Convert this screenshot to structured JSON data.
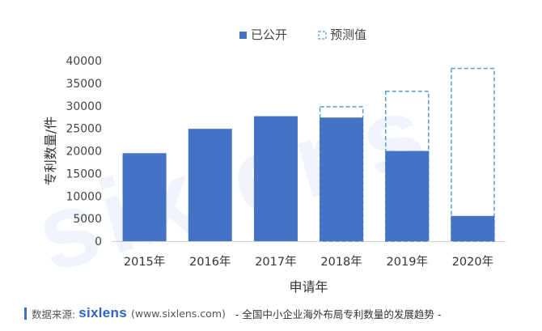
{
  "chart_data": {
    "type": "bar",
    "categories": [
      "2015年",
      "2016年",
      "2017年",
      "2018年",
      "2019年",
      "2020年"
    ],
    "series": [
      {
        "name": "已公开",
        "values": [
          19500,
          24900,
          27700,
          27400,
          20000,
          5600
        ],
        "color": "#4472c4",
        "style": "solid"
      },
      {
        "name": "预测值",
        "values": [
          null,
          null,
          null,
          29800,
          33200,
          38300
        ],
        "color": "#5b9bd5",
        "style": "dashed"
      }
    ],
    "xlabel": "申请年",
    "ylabel": "专利数量/件",
    "ylim": [
      0,
      40000
    ],
    "yticks": [
      0,
      5000,
      10000,
      15000,
      20000,
      25000,
      30000,
      35000,
      40000
    ],
    "grid": false,
    "legend": "top-right"
  },
  "watermark": "sixlens",
  "footer": {
    "source_label": "数据来源:",
    "logo": "sixlens",
    "url": "(www.sixlens.com)",
    "caption": "- 全国中小企业海外布局专利数量的发展趋势 -"
  }
}
